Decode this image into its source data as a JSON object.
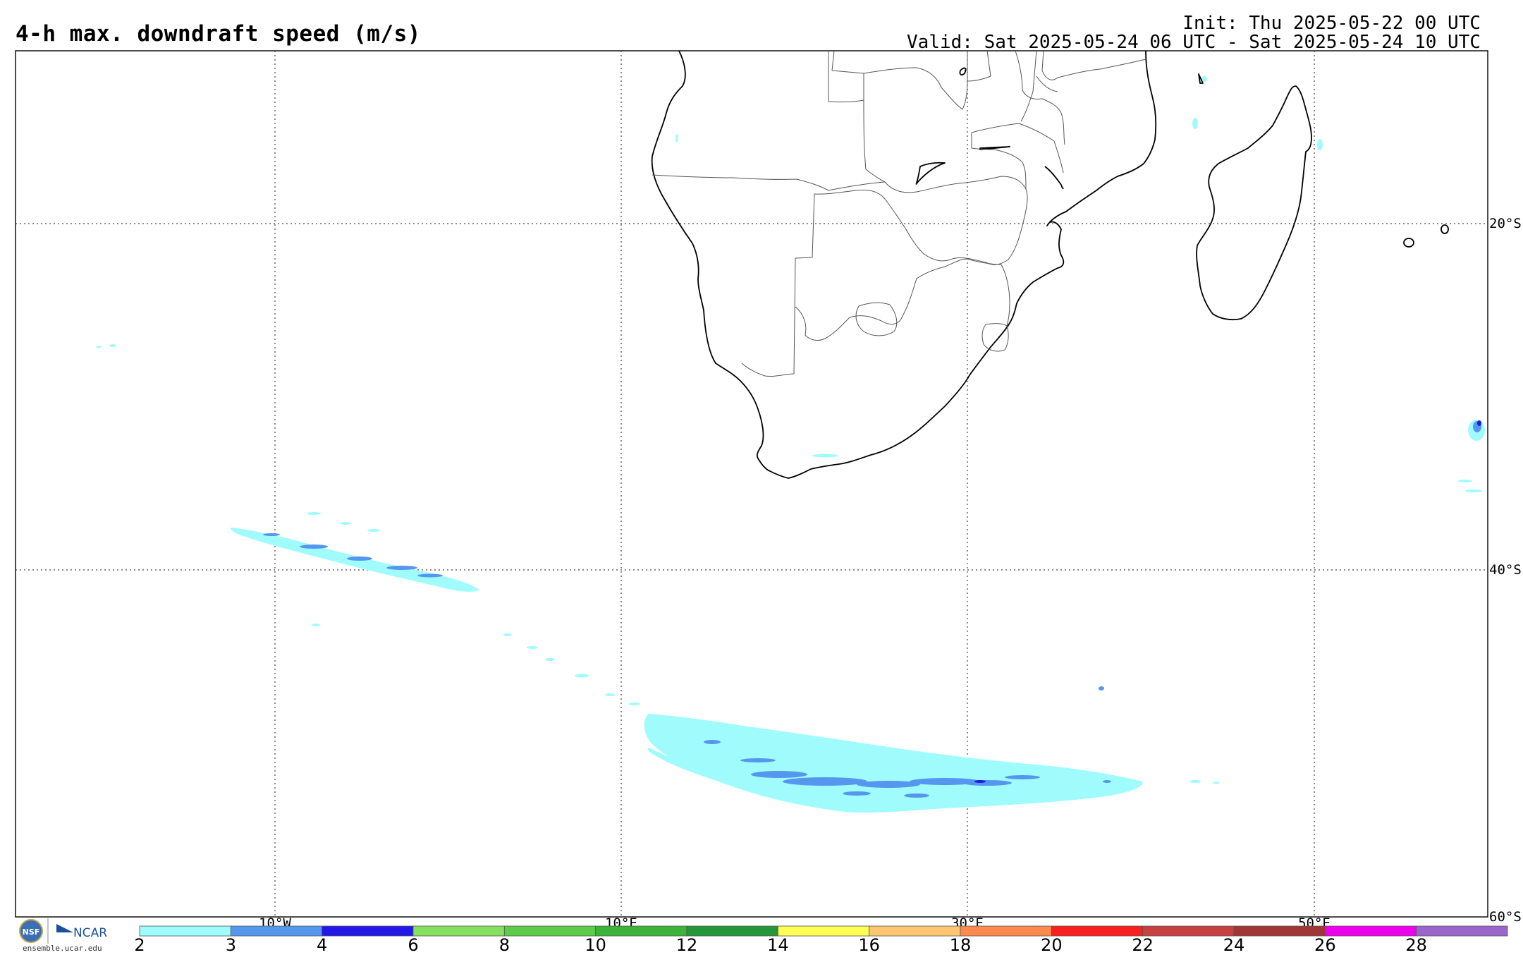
{
  "header": {
    "title": "4-h max. downdraft speed (m/s)",
    "init_line": "Init: Thu 2025-05-22 00 UTC",
    "valid_line": "Valid: Sat 2025-05-24 06 UTC - Sat 2025-05-24 10 UTC"
  },
  "map": {
    "lon_labels": [
      "10°W",
      "10°E",
      "30°E",
      "50°E"
    ],
    "lat_labels": [
      "20°S",
      "40°S",
      "60°S"
    ],
    "grid": "dotted",
    "region": "Southern Africa and South Atlantic / Indian Ocean"
  },
  "colorbar": {
    "labels": [
      "2",
      "3",
      "4",
      "6",
      "8",
      "10",
      "12",
      "14",
      "16",
      "18",
      "20",
      "22",
      "24",
      "26",
      "28"
    ],
    "colors": [
      "#a0fcfc",
      "#5596ee",
      "#2318e8",
      "#85e060",
      "#5ccc4a",
      "#3cb43c",
      "#26963a",
      "#ffff55",
      "#ffc671",
      "#ff8a4d",
      "#f82020",
      "#c84040",
      "#a23535",
      "#ee00ee",
      "#9a66cc"
    ]
  },
  "footer": {
    "logo_nsf": "NSF",
    "logo_ncar": "NCAR",
    "url": "ensemble.ucar.edu"
  }
}
